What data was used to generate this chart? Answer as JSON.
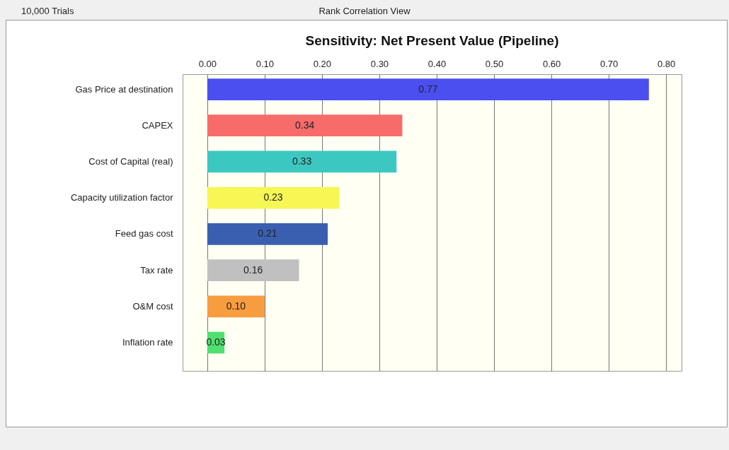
{
  "chart_data": {
    "type": "bar",
    "orientation": "horizontal",
    "title": "Sensitivity: Net Present Value (Pipeline)",
    "annotations": [
      "10,000 Trials",
      "Rank Correlation View"
    ],
    "categories": [
      "Gas Price at destination",
      "CAPEX",
      "Cost of Capital (real)",
      "Capacity utilization factor",
      "Feed gas cost",
      "Tax rate",
      "O&M cost",
      "Inflation rate"
    ],
    "values": [
      0.77,
      0.34,
      0.33,
      0.23,
      0.21,
      0.16,
      0.1,
      0.03
    ],
    "colors": [
      "#4b4ff0",
      "#f86b6b",
      "#3cc8c0",
      "#f6f654",
      "#3a5fb0",
      "#c0c0c0",
      "#f89c40",
      "#50e070"
    ],
    "xlim": [
      -0.043,
      0.827
    ],
    "xticks": [
      {
        "value": 0,
        "label": "0.00"
      },
      {
        "value": 0.1,
        "label": "0.10"
      },
      {
        "value": 0.2,
        "label": "0.20"
      },
      {
        "value": 0.3,
        "label": "0.30"
      },
      {
        "value": 0.4,
        "label": "0.40"
      },
      {
        "value": 0.5,
        "label": "0.50"
      },
      {
        "value": 0.6,
        "label": "0.60"
      },
      {
        "value": 0.7,
        "label": "0.70"
      },
      {
        "value": 0.8,
        "label": "0.80"
      }
    ],
    "grid": "x",
    "value_labels": [
      "0.77",
      "0.34",
      "0.33",
      "0.23",
      "0.21",
      "0.16",
      "0.10",
      "0.03"
    ]
  }
}
